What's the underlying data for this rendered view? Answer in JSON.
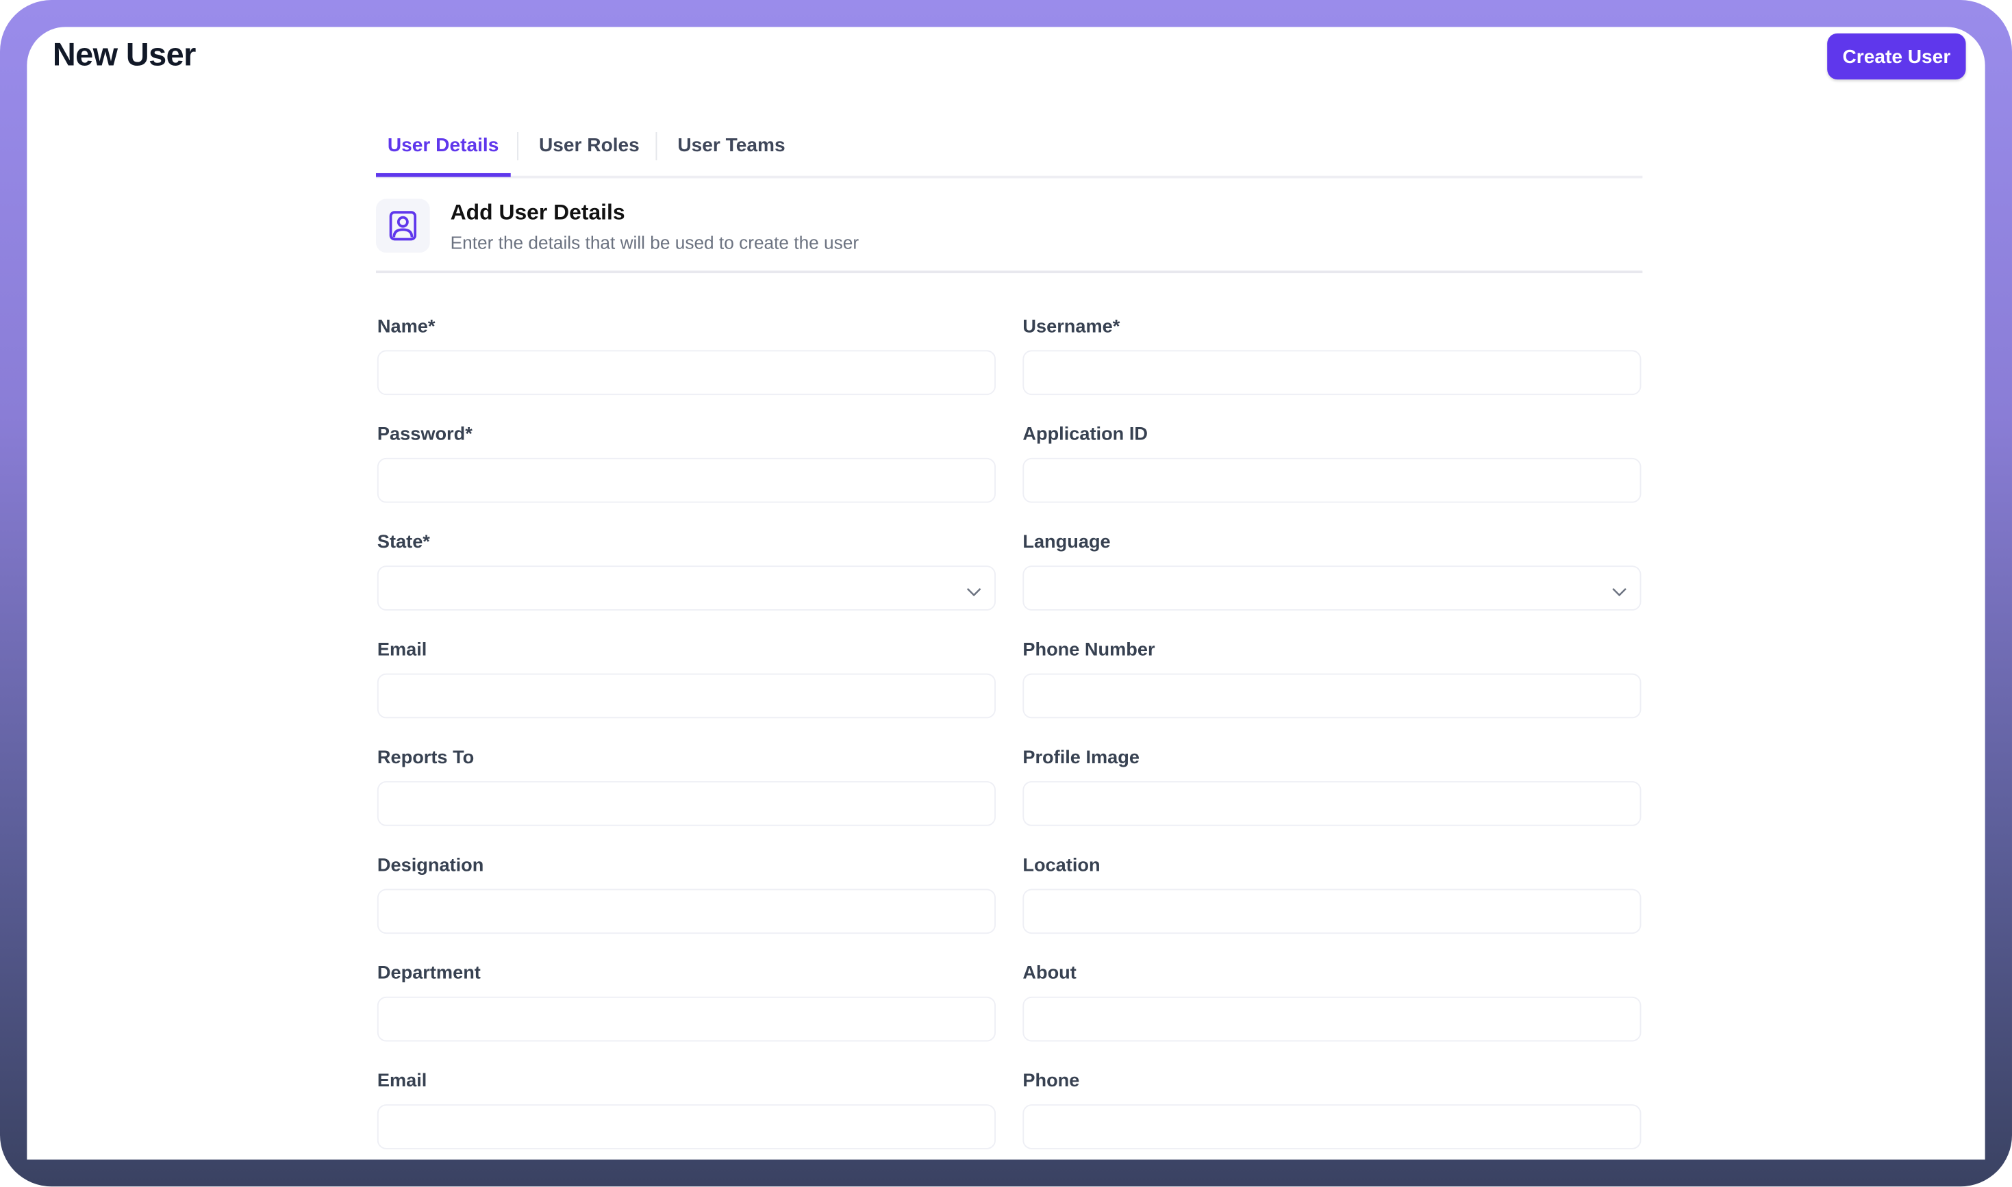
{
  "header": {
    "title": "New User",
    "create_button": "Create User"
  },
  "tabs": [
    {
      "label": "User Details",
      "active": true
    },
    {
      "label": "User Roles",
      "active": false
    },
    {
      "label": "User Teams",
      "active": false
    }
  ],
  "section": {
    "icon": "user-portrait-icon",
    "title": "Add User Details",
    "subtitle": "Enter the details that will be used to create the user"
  },
  "colors": {
    "accent": "#5f37ec",
    "frame_top": "#9a8ceb",
    "frame_bottom": "#3a4262"
  },
  "fields": [
    {
      "label": "Name*",
      "type": "text",
      "value": ""
    },
    {
      "label": "Username*",
      "type": "text",
      "value": ""
    },
    {
      "label": "Password*",
      "type": "password",
      "value": ""
    },
    {
      "label": "Application ID",
      "type": "text",
      "value": ""
    },
    {
      "label": "State*",
      "type": "select",
      "value": ""
    },
    {
      "label": "Language",
      "type": "select",
      "value": ""
    },
    {
      "label": "Email",
      "type": "text",
      "value": ""
    },
    {
      "label": "Phone Number",
      "type": "text",
      "value": ""
    },
    {
      "label": "Reports To",
      "type": "text",
      "value": ""
    },
    {
      "label": "Profile Image",
      "type": "text",
      "value": ""
    },
    {
      "label": "Designation",
      "type": "text",
      "value": ""
    },
    {
      "label": "Location",
      "type": "text",
      "value": ""
    },
    {
      "label": "Department",
      "type": "text",
      "value": ""
    },
    {
      "label": "About",
      "type": "text",
      "value": ""
    },
    {
      "label": "Email",
      "type": "text",
      "value": ""
    },
    {
      "label": "Phone",
      "type": "text",
      "value": ""
    }
  ]
}
